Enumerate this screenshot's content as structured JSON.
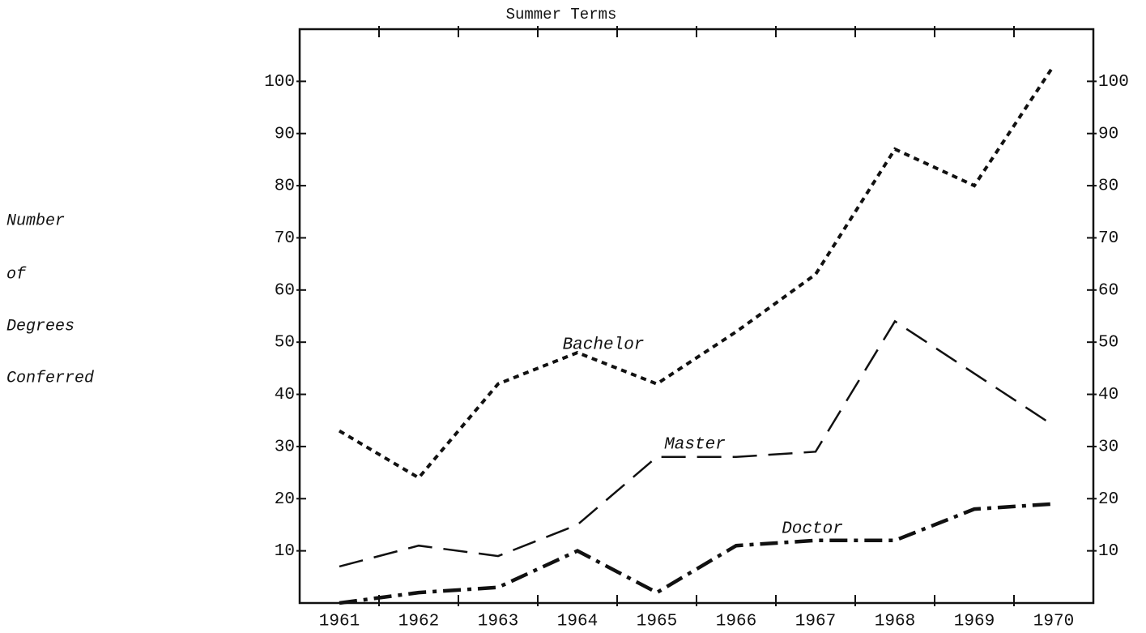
{
  "chart_data": {
    "type": "line",
    "title": "Summer Terms",
    "ylabel": [
      "Number",
      "of",
      "Degrees",
      "Conferred"
    ],
    "categories": [
      "1961",
      "1962",
      "1963",
      "1964",
      "1965",
      "1966",
      "1967",
      "1968",
      "1969",
      "1970"
    ],
    "series": [
      {
        "name": "Bachelor",
        "color": "#111111",
        "style": "short-dash",
        "values": [
          33,
          24,
          42,
          48,
          42,
          52,
          63,
          87,
          80,
          103
        ]
      },
      {
        "name": "Master",
        "color": "#111111",
        "style": "long-dash",
        "values": [
          7,
          11,
          9,
          15,
          28,
          28,
          29,
          54,
          44,
          34
        ]
      },
      {
        "name": "Doctor",
        "color": "#111111",
        "style": "dash-dot",
        "values": [
          0,
          2,
          3,
          10,
          2,
          11,
          12,
          12,
          18,
          19
        ]
      }
    ],
    "ylim": [
      0,
      110
    ],
    "yticks": [
      10,
      20,
      30,
      40,
      50,
      60,
      70,
      80,
      90,
      100
    ],
    "y2ticks": [
      10,
      20,
      30,
      40,
      50,
      60,
      70,
      80,
      90,
      100
    ],
    "grid": false
  }
}
